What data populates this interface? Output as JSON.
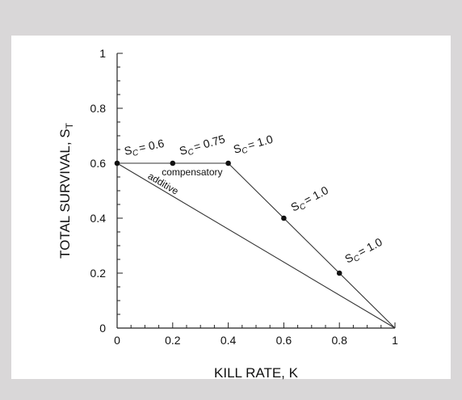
{
  "chart_data": {
    "type": "line",
    "xlabel": "KILL RATE, K",
    "ylabel_main": "TOTAL SURVIVAL, S",
    "ylabel_sub": "T",
    "xlim": [
      0,
      1
    ],
    "ylim": [
      0,
      1
    ],
    "x_ticks": [
      0,
      0.2,
      0.4,
      0.6,
      0.8,
      1
    ],
    "x_tick_labels": [
      "0",
      "0.2",
      "0.4",
      "0.6",
      "0.8",
      "1"
    ],
    "y_ticks": [
      0,
      0.2,
      0.4,
      0.6,
      0.8,
      1
    ],
    "y_tick_labels": [
      "0",
      "0.2",
      "0.4",
      "0.6",
      "0.8",
      "1"
    ],
    "grid": false,
    "series": [
      {
        "name": "compensatory",
        "x": [
          0,
          0.4,
          1
        ],
        "y": [
          0.6,
          0.6,
          0
        ]
      },
      {
        "name": "additive",
        "x": [
          0,
          1
        ],
        "y": [
          0.6,
          0
        ]
      }
    ],
    "points": [
      {
        "x": 0,
        "y": 0.6,
        "label_prefix": "S",
        "label_sub": "C",
        "label_value": "= 0.6"
      },
      {
        "x": 0.2,
        "y": 0.6,
        "label_prefix": "S",
        "label_sub": "C",
        "label_value": "= 0.75"
      },
      {
        "x": 0.4,
        "y": 0.6,
        "label_prefix": "S",
        "label_sub": "C",
        "label_value": "= 1.0"
      },
      {
        "x": 0.6,
        "y": 0.4,
        "label_prefix": "S",
        "label_sub": "C",
        "label_value": "= 1.0"
      },
      {
        "x": 0.8,
        "y": 0.2,
        "label_prefix": "S",
        "label_sub": "C",
        "label_value": "= 1.0"
      }
    ]
  }
}
